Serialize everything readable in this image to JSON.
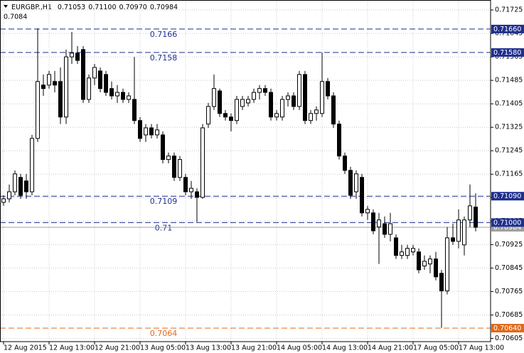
{
  "chart_data": {
    "type": "candlestick",
    "symbol": "EURGBP.,H1",
    "header_ohlc": [
      "0.71053",
      "0.71100",
      "0.70970",
      "0.70984"
    ],
    "corner_label": "0.7084",
    "categories": [
      "12 Aug 2015",
      null,
      null,
      null,
      null,
      null,
      null,
      null,
      "12 Aug 13:00",
      null,
      null,
      null,
      null,
      null,
      null,
      null,
      "12 Aug 21:00",
      null,
      null,
      null,
      null,
      null,
      null,
      null,
      "13 Aug 05:00",
      null,
      null,
      null,
      null,
      null,
      null,
      null,
      "13 Aug 13:00",
      null,
      null,
      null,
      null,
      null,
      null,
      null,
      "13 Aug 21:00",
      null,
      null,
      null,
      null,
      null,
      null,
      null,
      "14 Aug 05:00",
      null,
      null,
      null,
      null,
      null,
      null,
      null,
      "14 Aug 13:00",
      null,
      null,
      null,
      null,
      null,
      null,
      null,
      "14 Aug 21:00",
      null,
      null,
      null,
      null,
      null,
      null,
      null,
      "17 Aug 05:00",
      null,
      null,
      null,
      null,
      null,
      null,
      null,
      "17 Aug 13:00",
      null,
      null,
      null
    ],
    "open": [
      0.71069,
      0.71081,
      0.71105,
      0.71154,
      0.71142,
      0.71105,
      0.71287,
      0.71469,
      0.71469,
      0.71481,
      0.71481,
      0.7136,
      0.71565,
      0.71578,
      0.7159,
      0.7142,
      0.71493,
      0.71517,
      0.71505,
      0.71457,
      0.71432,
      0.71444,
      0.7142,
      0.7142,
      0.71348,
      0.71299,
      0.71323,
      0.71299,
      0.71299,
      0.71215,
      0.71227,
      0.71154,
      0.71154,
      0.71105,
      0.71105,
      0.71086,
      0.71336,
      0.71396,
      0.71449,
      0.71372,
      0.7136,
      0.71348,
      0.71396,
      0.71408,
      0.7142,
      0.71444,
      0.71457,
      0.71444,
      0.7136,
      0.7136,
      0.7142,
      0.71432,
      0.71396,
      0.71505,
      0.71348,
      0.71372,
      0.71372,
      0.71481,
      0.71432,
      0.71336,
      0.71227,
      0.71178,
      0.71105,
      0.71154,
      0.71033,
      0.71033,
      0.70985,
      0.70996,
      0.7096,
      0.70948,
      0.70888,
      0.70888,
      0.709,
      0.709,
      0.70852,
      0.70859,
      0.70876,
      0.70827,
      0.70767,
      0.70948,
      0.70936,
      0.70924,
      0.71009,
      0.71053
    ],
    "high": [
      0.71093,
      0.7113,
      0.71178,
      0.71166,
      0.71166,
      0.71299,
      0.71662,
      0.71505,
      0.71517,
      0.71517,
      0.71529,
      0.7159,
      0.7165,
      0.71602,
      0.71602,
      0.71505,
      0.71541,
      0.71529,
      0.71517,
      0.71481,
      0.71469,
      0.71457,
      0.71444,
      0.71565,
      0.7136,
      0.71336,
      0.71336,
      0.71336,
      0.71311,
      0.71239,
      0.71239,
      0.71227,
      0.71166,
      0.71142,
      0.71117,
      0.71336,
      0.71408,
      0.71505,
      0.71457,
      0.71384,
      0.71372,
      0.71432,
      0.71432,
      0.71432,
      0.71457,
      0.71469,
      0.71469,
      0.71457,
      0.71384,
      0.71432,
      0.71444,
      0.71444,
      0.71517,
      0.71517,
      0.71384,
      0.71396,
      0.7158,
      0.71493,
      0.71444,
      0.71348,
      0.71239,
      0.7119,
      0.71178,
      0.71166,
      0.71057,
      0.71045,
      0.71033,
      0.71021,
      0.71033,
      0.7096,
      0.70924,
      0.70924,
      0.70924,
      0.70912,
      0.70888,
      0.70888,
      0.709,
      0.70839,
      0.70985,
      0.70996,
      0.71045,
      0.71021,
      0.7113,
      0.711
    ],
    "low": [
      0.71057,
      0.71069,
      0.71093,
      0.71081,
      0.71081,
      0.71093,
      0.71275,
      0.71432,
      0.71457,
      0.71444,
      0.71336,
      0.71336,
      0.71541,
      0.71541,
      0.71408,
      0.71408,
      0.71469,
      0.71444,
      0.71432,
      0.7142,
      0.71408,
      0.71408,
      0.71408,
      0.71336,
      0.71275,
      0.71275,
      0.71287,
      0.71287,
      0.71202,
      0.71202,
      0.71142,
      0.71142,
      0.71093,
      0.71081,
      0.71002,
      0.71081,
      0.71323,
      0.71384,
      0.7136,
      0.71348,
      0.71311,
      0.71336,
      0.71384,
      0.71396,
      0.71408,
      0.7142,
      0.71432,
      0.71348,
      0.71348,
      0.71348,
      0.71396,
      0.71384,
      0.71384,
      0.71336,
      0.71336,
      0.71348,
      0.7136,
      0.7142,
      0.71323,
      0.71215,
      0.71166,
      0.71081,
      0.71081,
      0.71021,
      0.71009,
      0.7096,
      0.70859,
      0.70948,
      0.70936,
      0.70876,
      0.70876,
      0.70876,
      0.70888,
      0.70827,
      0.70839,
      0.70827,
      0.70803,
      0.70641,
      0.70755,
      0.70924,
      0.70912,
      0.70888,
      0.70985,
      0.7097
    ],
    "close": [
      0.71081,
      0.71105,
      0.71166,
      0.71093,
      0.71105,
      0.71287,
      0.71481,
      0.71457,
      0.71505,
      0.71469,
      0.7136,
      0.71565,
      0.71578,
      0.71553,
      0.7142,
      0.71493,
      0.71529,
      0.71457,
      0.71444,
      0.71432,
      0.71444,
      0.7142,
      0.71432,
      0.71348,
      0.71287,
      0.71323,
      0.71299,
      0.71316,
      0.71215,
      0.71227,
      0.71154,
      0.71215,
      0.71105,
      0.71117,
      0.71086,
      0.71323,
      0.71396,
      0.71457,
      0.71372,
      0.7136,
      0.71348,
      0.7142,
      0.7142,
      0.7142,
      0.71444,
      0.71457,
      0.71444,
      0.7136,
      0.71372,
      0.7142,
      0.71432,
      0.71396,
      0.71505,
      0.71348,
      0.71372,
      0.71384,
      0.71481,
      0.71432,
      0.71336,
      0.71227,
      0.71178,
      0.71093,
      0.71166,
      0.71033,
      0.71045,
      0.70972,
      0.71009,
      0.7096,
      0.70996,
      0.70888,
      0.709,
      0.70912,
      0.70912,
      0.70839,
      0.70868,
      0.70876,
      0.70815,
      0.70767,
      0.70948,
      0.70936,
      0.71009,
      0.71009,
      0.71057,
      0.70984
    ],
    "up_color": "#ffffff",
    "down_color": "#000000",
    "ylim": [
      0.70594,
      0.71759
    ],
    "yticks": [
      0.71725,
      0.71645,
      0.71565,
      0.71485,
      0.71405,
      0.71325,
      0.71245,
      0.71165,
      0.71085,
      0.71005,
      0.70925,
      0.70845,
      0.70765,
      0.70685,
      0.70605
    ],
    "grid": true,
    "levels": [
      {
        "value": 0.7166,
        "label": "0.7166",
        "price_label": "0.71660",
        "color": "#1f2f8f"
      },
      {
        "value": 0.7158,
        "label": "0.7158",
        "price_label": "0.71580",
        "color": "#1f2f8f"
      },
      {
        "value": 0.7109,
        "label": "0.7109",
        "price_label": "0.71090",
        "color": "#1f2f8f"
      },
      {
        "value": 0.71,
        "label": "0.71",
        "price_label": "0.71000",
        "color": "#1f2f8f"
      },
      {
        "value": 0.7064,
        "label": "0.7064",
        "price_label": "0.70640",
        "color": "#e0691a"
      }
    ],
    "bid": {
      "value": 0.70984,
      "label": "0.70984",
      "color": "#a0a0a0"
    }
  }
}
